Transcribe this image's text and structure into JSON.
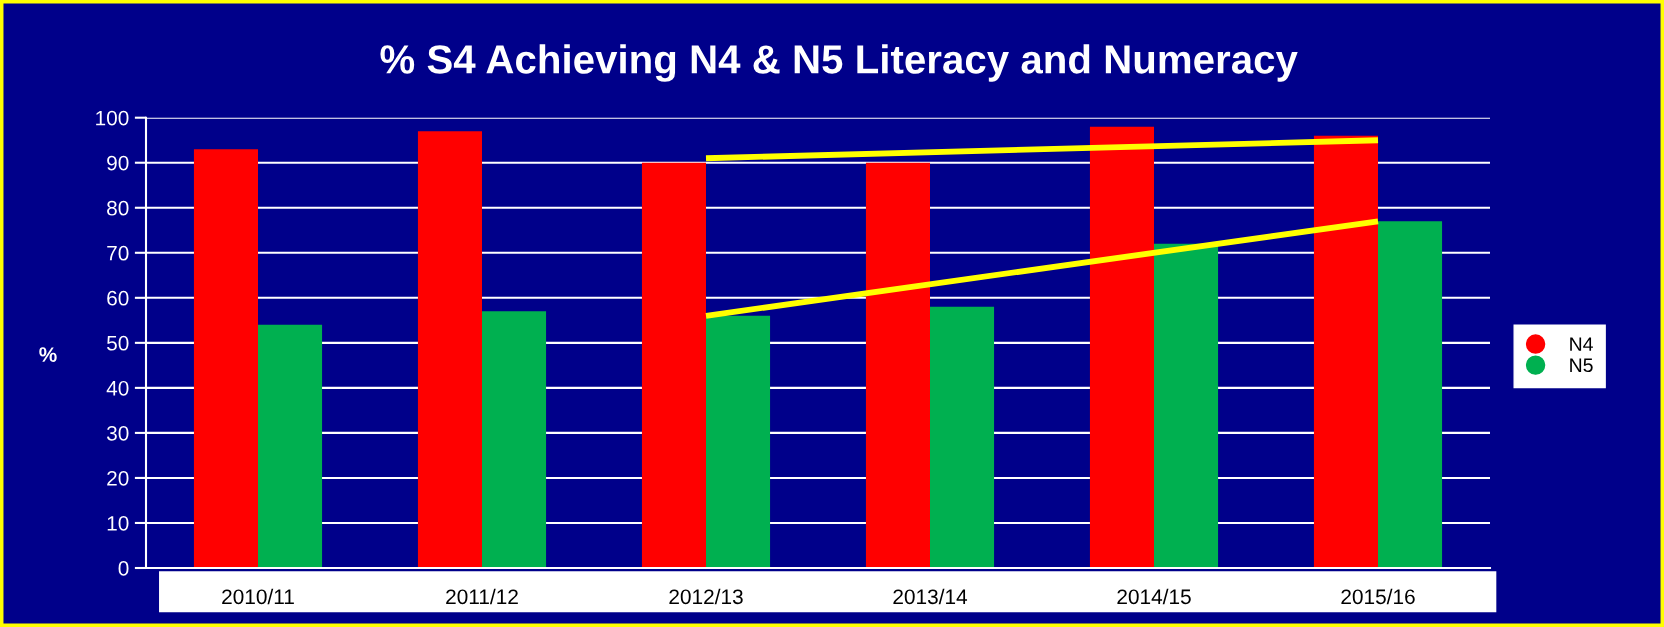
{
  "chart_data": {
    "type": "bar",
    "title": "% S4 Achieving N4 & N5 Literacy and Numeracy",
    "ylabel": "%",
    "categories": [
      "2010/11",
      "2011/12",
      "2012/13",
      "2013/14",
      "2014/15",
      "2015/16"
    ],
    "series": [
      {
        "name": "N4",
        "color": "#ff0000",
        "values": [
          93,
          97,
          90,
          90,
          98,
          96
        ]
      },
      {
        "name": "N5",
        "color": "#00b050",
        "values": [
          54,
          57,
          56,
          58,
          72,
          77
        ]
      },
      {
        "type": "line",
        "color": "#ffff00",
        "x": [
          "2012/13",
          "2015/16"
        ],
        "values": [
          91,
          95
        ]
      },
      {
        "type": "line",
        "color": "#ffff00",
        "x": [
          "2012/13",
          "2015/16"
        ],
        "values": [
          56,
          77
        ]
      }
    ],
    "ylim": [
      0,
      100
    ],
    "yticks": [
      0,
      10,
      20,
      30,
      40,
      50,
      60,
      70,
      80,
      90,
      100
    ],
    "grid": "y",
    "legend": "right"
  }
}
